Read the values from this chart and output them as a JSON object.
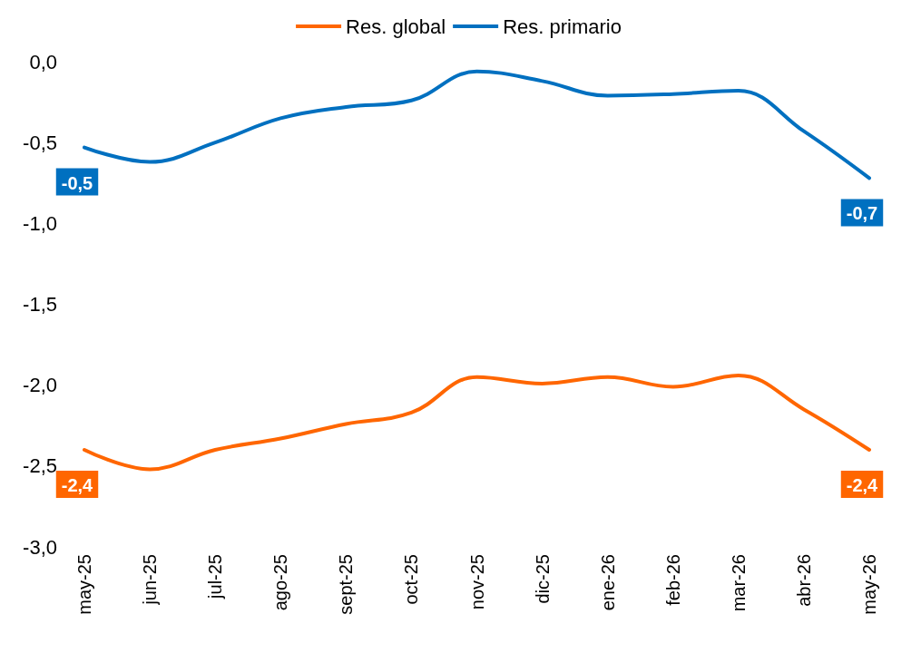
{
  "chart_data": {
    "type": "line",
    "categories": [
      "may-25",
      "jun-25",
      "jul-25",
      "ago-25",
      "sept-25",
      "oct-25",
      "nov-25",
      "dic-25",
      "ene-26",
      "feb-26",
      "mar-26",
      "abr-26",
      "may-26"
    ],
    "series": [
      {
        "name": "Res. global",
        "color": "#ff6600",
        "values": [
          -2.4,
          -2.52,
          -2.4,
          -2.33,
          -2.24,
          -2.17,
          -1.95,
          -1.99,
          -1.95,
          -2.01,
          -1.94,
          -2.15,
          -2.4
        ],
        "value_labels": [
          "-2,4",
          null,
          null,
          null,
          null,
          null,
          null,
          null,
          null,
          null,
          null,
          null,
          "-2,4"
        ]
      },
      {
        "name": "Res. primario",
        "color": "#0070c0",
        "values": [
          -0.53,
          -0.62,
          -0.5,
          -0.35,
          -0.28,
          -0.24,
          -0.06,
          -0.12,
          -0.21,
          -0.2,
          -0.18,
          -0.43,
          -0.72
        ],
        "value_labels": [
          "-0,5",
          null,
          null,
          null,
          null,
          null,
          null,
          null,
          null,
          null,
          null,
          null,
          "-0,7"
        ]
      }
    ],
    "ylim": [
      -3,
      0
    ],
    "yticks": [
      {
        "value": -3,
        "label": "-3,0"
      },
      {
        "value": -2.5,
        "label": "-2,5"
      },
      {
        "value": -2,
        "label": "-2,0"
      },
      {
        "value": -1.5,
        "label": "-1,5"
      },
      {
        "value": -1,
        "label": "-1,0"
      },
      {
        "value": -0.5,
        "label": "-0,5"
      },
      {
        "value": 0,
        "label": "0,0"
      }
    ],
    "grid": false,
    "legend": "top",
    "marker": "none",
    "line_style": "solid"
  }
}
